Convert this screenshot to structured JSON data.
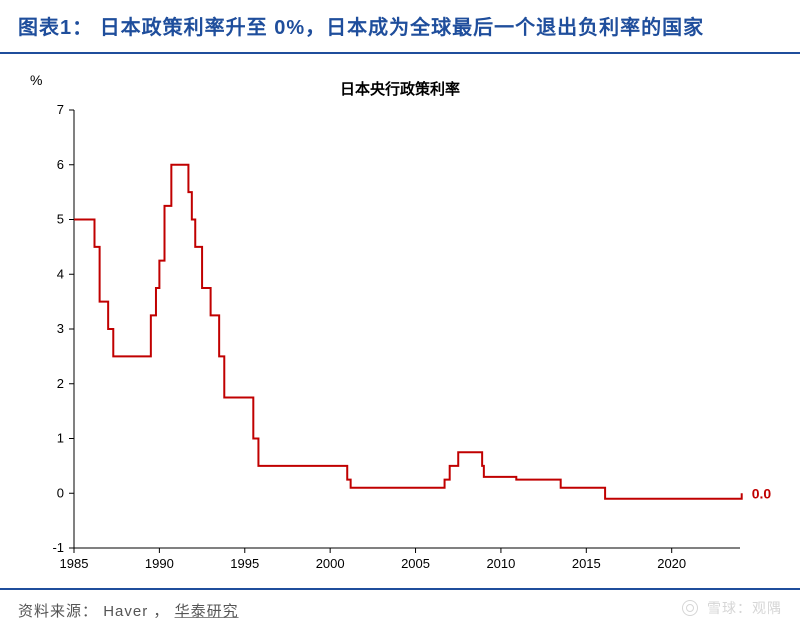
{
  "header": {
    "label_prefix": "图表1：",
    "title": "日本政策利率升至 0%，日本成为全球最后一个退出负利率的国家"
  },
  "chart": {
    "type": "line-step",
    "y_unit_label": "%",
    "title": "日本央行政策利率",
    "xlim": [
      1985,
      2024
    ],
    "ylim": [
      -1,
      7
    ],
    "xticks": [
      1985,
      1990,
      1995,
      2000,
      2005,
      2010,
      2015,
      2020
    ],
    "yticks": [
      -1,
      0,
      1,
      2,
      3,
      4,
      5,
      6,
      7
    ],
    "axis_color": "#000000",
    "background_color": "#ffffff",
    "tick_fontsize": 13,
    "series": {
      "color": "#c00000",
      "line_width": 2,
      "points": [
        [
          1985.0,
          5.0
        ],
        [
          1986.0,
          5.0
        ],
        [
          1986.2,
          4.5
        ],
        [
          1986.5,
          3.5
        ],
        [
          1986.8,
          3.5
        ],
        [
          1987.0,
          3.0
        ],
        [
          1987.3,
          2.5
        ],
        [
          1989.3,
          2.5
        ],
        [
          1989.5,
          3.25
        ],
        [
          1989.8,
          3.75
        ],
        [
          1990.0,
          4.25
        ],
        [
          1990.3,
          5.25
        ],
        [
          1990.7,
          6.0
        ],
        [
          1991.5,
          6.0
        ],
        [
          1991.7,
          5.5
        ],
        [
          1991.9,
          5.0
        ],
        [
          1992.1,
          4.5
        ],
        [
          1992.5,
          3.75
        ],
        [
          1993.0,
          3.25
        ],
        [
          1993.5,
          2.5
        ],
        [
          1993.8,
          1.75
        ],
        [
          1995.2,
          1.75
        ],
        [
          1995.5,
          1.0
        ],
        [
          1995.8,
          0.5
        ],
        [
          1998.7,
          0.5
        ],
        [
          1999.0,
          0.5
        ],
        [
          2000.7,
          0.5
        ],
        [
          2001.0,
          0.25
        ],
        [
          2001.2,
          0.1
        ],
        [
          2006.5,
          0.1
        ],
        [
          2006.7,
          0.25
        ],
        [
          2007.0,
          0.5
        ],
        [
          2007.3,
          0.5
        ],
        [
          2007.5,
          0.75
        ],
        [
          2008.7,
          0.75
        ],
        [
          2008.9,
          0.5
        ],
        [
          2009.0,
          0.3
        ],
        [
          2010.7,
          0.3
        ],
        [
          2010.9,
          0.25
        ],
        [
          2013.3,
          0.25
        ],
        [
          2013.5,
          0.1
        ],
        [
          2016.0,
          0.1
        ],
        [
          2016.1,
          -0.1
        ],
        [
          2024.0,
          -0.1
        ],
        [
          2024.1,
          0.0
        ]
      ],
      "end_label": "0.0"
    }
  },
  "source": {
    "prefix": "资料来源：",
    "items": [
      "Haver",
      "华泰研究"
    ]
  },
  "watermark": {
    "text": "雪球：观隅"
  },
  "colors": {
    "title_color": "#1f4e9c",
    "rule_color": "#1f4e9c",
    "source_text_color": "#555555",
    "watermark_color": "#bbbbbb"
  },
  "typography": {
    "title_fontsize": 20,
    "chart_title_fontsize": 15,
    "source_fontsize": 15
  }
}
